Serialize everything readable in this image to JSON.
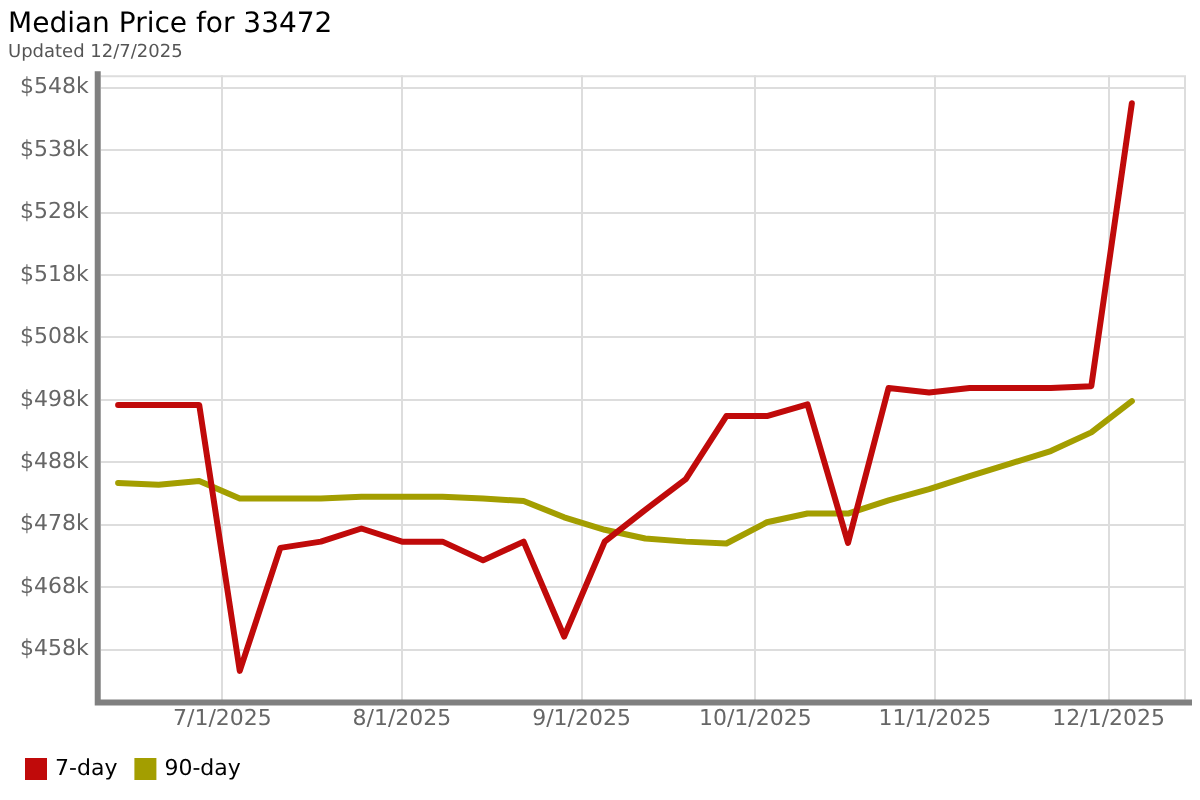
{
  "chart_data": {
    "type": "line",
    "title": "Median Price for 33472",
    "subtitle": "Updated 12/7/2025",
    "x": [
      "2025-06-13",
      "2025-06-20",
      "2025-06-27",
      "2025-07-04",
      "2025-07-11",
      "2025-07-18",
      "2025-07-25",
      "2025-08-01",
      "2025-08-08",
      "2025-08-15",
      "2025-08-22",
      "2025-08-29",
      "2025-09-05",
      "2025-09-12",
      "2025-09-19",
      "2025-09-26",
      "2025-10-03",
      "2025-10-10",
      "2025-10-17",
      "2025-10-24",
      "2025-10-31",
      "2025-11-07",
      "2025-11-14",
      "2025-11-21",
      "2025-11-28",
      "2025-12-05"
    ],
    "series": [
      {
        "name": "7-day",
        "color": "#c00a0a",
        "values": [
          497.2,
          497.2,
          497.2,
          454.6,
          474.3,
          475.3,
          477.4,
          475.3,
          475.3,
          472.3,
          475.3,
          460.1,
          475.3,
          480.4,
          485.3,
          495.4,
          495.4,
          497.3,
          475.1,
          499.9,
          499.2,
          499.9,
          499.9,
          499.9,
          500.2,
          545.5
        ]
      },
      {
        "name": "90-day",
        "color": "#a39e00",
        "values": [
          484.7,
          484.4,
          485.0,
          482.2,
          482.2,
          482.2,
          482.5,
          482.5,
          482.5,
          482.2,
          481.8,
          479.2,
          477.2,
          475.8,
          475.3,
          475.0,
          478.4,
          479.8,
          479.8,
          481.9,
          483.7,
          485.8,
          487.8,
          489.8,
          492.8,
          497.8
        ]
      }
    ],
    "xlim": [
      "2025-06-10",
      "2025-12-14"
    ],
    "xticks": [
      {
        "value": "2025-07-01",
        "label": "7/1/2025"
      },
      {
        "value": "2025-08-01",
        "label": "8/1/2025"
      },
      {
        "value": "2025-09-01",
        "label": "9/1/2025"
      },
      {
        "value": "2025-10-01",
        "label": "10/1/2025"
      },
      {
        "value": "2025-11-01",
        "label": "11/1/2025"
      },
      {
        "value": "2025-12-01",
        "label": "12/1/2025"
      }
    ],
    "ylim": [
      450,
      550
    ],
    "yticks": [
      {
        "value": 458,
        "label": "$458k"
      },
      {
        "value": 468,
        "label": "$468k"
      },
      {
        "value": 478,
        "label": "$478k"
      },
      {
        "value": 488,
        "label": "$488k"
      },
      {
        "value": 498,
        "label": "$498k"
      },
      {
        "value": 508,
        "label": "$508k"
      },
      {
        "value": 518,
        "label": "$518k"
      },
      {
        "value": 528,
        "label": "$528k"
      },
      {
        "value": 538,
        "label": "$538k"
      },
      {
        "value": 548,
        "label": "$548k"
      }
    ],
    "grid": true,
    "legend": "bottom left",
    "marker": "none",
    "line_style": "solid"
  }
}
